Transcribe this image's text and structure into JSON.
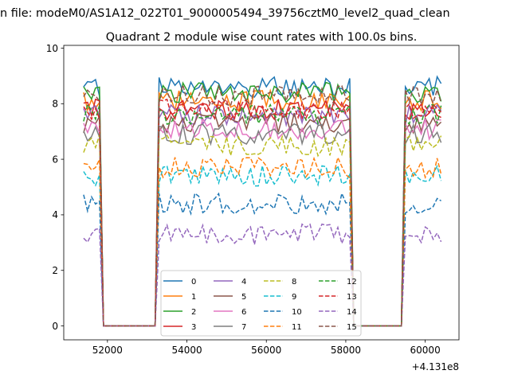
{
  "figure": {
    "suptitle": "n file: modeM0/AS1A12_022T01_9000005494_39756cztM0_level2_quad_clean",
    "title": "Quadrant 2 module wise count rates with 100.0s bins."
  },
  "chart_data": {
    "type": "line",
    "title": "Quadrant 2 module wise count rates with 100.0s bins.",
    "xlabel": "",
    "ylabel": "",
    "x_offset_label": "+4.131e8",
    "xlim": [
      50900,
      60850
    ],
    "ylim": [
      -0.5,
      10.1
    ],
    "xticks": [
      52000,
      54000,
      56000,
      58000,
      60000
    ],
    "xtick_labels": [
      "52000",
      "54000",
      "56000",
      "58000",
      "60000"
    ],
    "yticks": [
      0,
      2,
      4,
      6,
      8,
      10
    ],
    "ytick_labels": [
      "0",
      "2",
      "4",
      "6",
      "8",
      "10"
    ],
    "grid": false,
    "legend_position": "lower center",
    "legend_columns": 4,
    "bin_width": 100,
    "segments": [
      {
        "start": 51400,
        "end": 51800
      },
      {
        "start": 51900,
        "end": 53200
      },
      {
        "start": 53300,
        "end": 58100
      },
      {
        "start": 58200,
        "end": 59400
      },
      {
        "start": 59500,
        "end": 60400
      }
    ],
    "series": [
      {
        "name": "0",
        "color": "#1f77b4",
        "style": "solid",
        "level": 8.6
      },
      {
        "name": "1",
        "color": "#ff7f0e",
        "style": "solid",
        "level": 8.1
      },
      {
        "name": "2",
        "color": "#2ca02c",
        "style": "solid",
        "level": 8.4
      },
      {
        "name": "3",
        "color": "#d62728",
        "style": "solid",
        "level": 7.8
      },
      {
        "name": "4",
        "color": "#9467bd",
        "style": "solid",
        "level": 7.6
      },
      {
        "name": "5",
        "color": "#8c564b",
        "style": "solid",
        "level": 7.3
      },
      {
        "name": "6",
        "color": "#e377c2",
        "style": "solid",
        "level": 7.1
      },
      {
        "name": "7",
        "color": "#7f7f7f",
        "style": "solid",
        "level": 6.9
      },
      {
        "name": "8",
        "color": "#bcbd22",
        "style": "dashed",
        "level": 6.5
      },
      {
        "name": "9",
        "color": "#17becf",
        "style": "dashed",
        "level": 5.4
      },
      {
        "name": "10",
        "color": "#1f77b4",
        "style": "dashed",
        "level": 4.4
      },
      {
        "name": "11",
        "color": "#ff7f0e",
        "style": "dashed",
        "level": 5.7
      },
      {
        "name": "12",
        "color": "#2ca02c",
        "style": "dashed",
        "level": 7.6
      },
      {
        "name": "13",
        "color": "#d62728",
        "style": "dashed",
        "level": 7.8
      },
      {
        "name": "14",
        "color": "#9467bd",
        "style": "dashed",
        "level": 3.3
      },
      {
        "name": "15",
        "color": "#8c564b",
        "style": "dashed",
        "level": 8.3
      }
    ]
  }
}
